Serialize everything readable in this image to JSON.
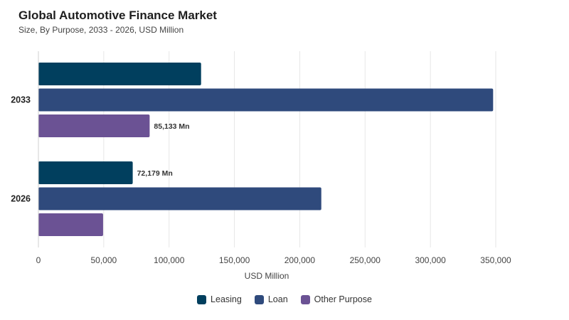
{
  "title": "Global Automotive Finance Market",
  "subtitle": "Size, By Purpose, 2033 - 2026, USD Million",
  "chart_data": {
    "type": "bar",
    "orientation": "horizontal",
    "categories": [
      "2033",
      "2026"
    ],
    "series": [
      {
        "name": "Leasing",
        "color": "#013f5e",
        "values": [
          124500,
          72179
        ],
        "labels": [
          "",
          "72,179 Mn"
        ]
      },
      {
        "name": "Loan",
        "color": "#2f4a7c",
        "values": [
          348000,
          216500
        ],
        "labels": [
          "",
          ""
        ]
      },
      {
        "name": "Other Purpose",
        "color": "#6b5294",
        "values": [
          85133,
          49500
        ],
        "labels": [
          "85,133 Mn",
          ""
        ]
      }
    ],
    "xlabel": "USD Million",
    "xlim": [
      0,
      350000
    ],
    "xticks": [
      0,
      50000,
      100000,
      150000,
      200000,
      250000,
      300000,
      350000
    ],
    "xtick_labels": [
      "0",
      "50,000",
      "100,000",
      "150,000",
      "200,000",
      "250,000",
      "300,000",
      "350,000"
    ],
    "grid": true,
    "legend_position": "bottom-center"
  }
}
